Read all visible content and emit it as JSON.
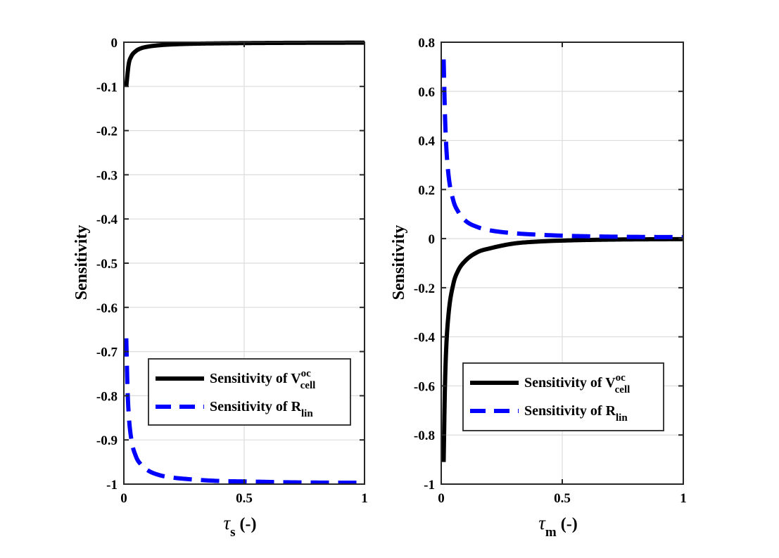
{
  "chart_data": [
    {
      "type": "line",
      "panel": "left",
      "xlabel": {
        "symbol": "τ",
        "subscript": "s",
        "suffix": " (-)"
      },
      "ylabel": "Sensitivity",
      "xlim": [
        0,
        1
      ],
      "ylim": [
        -1,
        0
      ],
      "xticks": [
        0,
        0.5,
        1
      ],
      "xtick_labels": [
        "0",
        "0.5",
        "1"
      ],
      "yticks": [
        0,
        -0.1,
        -0.2,
        -0.3,
        -0.4,
        -0.5,
        -0.6,
        -0.7,
        -0.8,
        -0.9,
        -1
      ],
      "ytick_labels": [
        "0",
        "-0.1",
        "-0.2",
        "-0.3",
        "-0.4",
        "-0.5",
        "-0.6",
        "-0.7",
        "-0.8",
        "-0.9",
        "-1"
      ],
      "grid": true,
      "legend_position": "lower-center",
      "series": [
        {
          "name": "Sensitivity of V_cell^oc",
          "legend": {
            "prefix": "Sensitivity of ",
            "main": "V",
            "sub": "cell",
            "sup": "oc"
          },
          "color": "#000000",
          "style": "solid",
          "x": [
            0.01,
            0.02,
            0.03,
            0.05,
            0.07,
            0.1,
            0.15,
            0.2,
            0.3,
            0.4,
            0.5,
            0.7,
            1.0
          ],
          "y": [
            -0.1,
            -0.05,
            -0.033,
            -0.02,
            -0.014,
            -0.01,
            -0.0067,
            -0.005,
            -0.0033,
            -0.0025,
            -0.002,
            -0.0014,
            -0.001
          ]
        },
        {
          "name": "Sensitivity of R_lin",
          "legend": {
            "prefix": "Sensitivity of ",
            "main": "R",
            "sub": "lin",
            "sup": ""
          },
          "color": "#0000FF",
          "style": "dashed",
          "x": [
            0.01,
            0.015,
            0.02,
            0.03,
            0.05,
            0.07,
            0.1,
            0.15,
            0.2,
            0.3,
            0.4,
            0.5,
            0.7,
            1.0
          ],
          "y": [
            -0.67,
            -0.78,
            -0.84,
            -0.895,
            -0.937,
            -0.955,
            -0.969,
            -0.98,
            -0.985,
            -0.99,
            -0.993,
            -0.994,
            -0.996,
            -0.997
          ]
        }
      ]
    },
    {
      "type": "line",
      "panel": "right",
      "xlabel": {
        "symbol": "τ",
        "subscript": "m",
        "suffix": " (-)"
      },
      "ylabel": "Sensitivity",
      "xlim": [
        0,
        1
      ],
      "ylim": [
        -1,
        0.8
      ],
      "xticks": [
        0,
        0.5,
        1
      ],
      "xtick_labels": [
        "0",
        "0.5",
        "1"
      ],
      "yticks": [
        0.8,
        0.6,
        0.4,
        0.2,
        0,
        -0.2,
        -0.4,
        -0.6,
        -0.8,
        -1
      ],
      "ytick_labels": [
        "0.8",
        "0.6",
        "0.4",
        "0.2",
        "0",
        "-0.2",
        "-0.4",
        "-0.6",
        "-0.8",
        "-1"
      ],
      "grid": true,
      "legend_position": "lower-center",
      "series": [
        {
          "name": "Sensitivity of V_cell^oc",
          "legend": {
            "prefix": "Sensitivity of ",
            "main": "V",
            "sub": "cell",
            "sup": "oc"
          },
          "color": "#000000",
          "style": "solid",
          "x": [
            0.01,
            0.015,
            0.02,
            0.03,
            0.05,
            0.07,
            0.1,
            0.15,
            0.2,
            0.3,
            0.4,
            0.5,
            0.7,
            1.0
          ],
          "y": [
            -0.91,
            -0.62,
            -0.46,
            -0.31,
            -0.185,
            -0.13,
            -0.09,
            -0.055,
            -0.04,
            -0.02,
            -0.012,
            -0.008,
            -0.004,
            -0.002
          ]
        },
        {
          "name": "Sensitivity of R_lin",
          "legend": {
            "prefix": "Sensitivity of ",
            "main": "R",
            "sub": "lin",
            "sup": ""
          },
          "color": "#0000FF",
          "style": "dashed",
          "x": [
            0.01,
            0.015,
            0.02,
            0.03,
            0.05,
            0.07,
            0.1,
            0.15,
            0.2,
            0.3,
            0.4,
            0.5,
            0.7,
            1.0
          ],
          "y": [
            0.73,
            0.52,
            0.39,
            0.26,
            0.155,
            0.11,
            0.073,
            0.047,
            0.034,
            0.022,
            0.016,
            0.012,
            0.008,
            0.006
          ]
        }
      ]
    }
  ]
}
